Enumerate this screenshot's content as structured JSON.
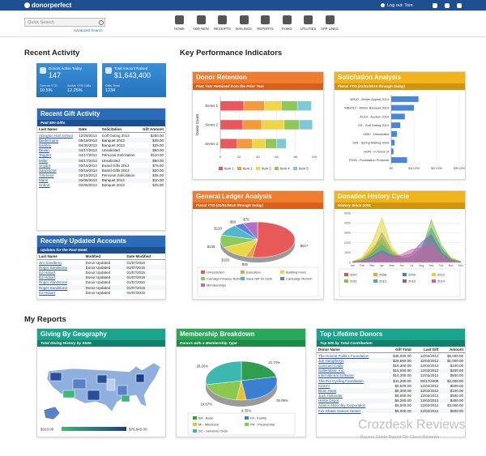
{
  "header": {
    "logo": "donorperfect",
    "logout": "Log out: Tom",
    "search_placeholder": "Quick Search",
    "advanced_search": "Advanced Search",
    "nav": [
      "HOME",
      "ADD NEW",
      "RECEIPTS",
      "MAILINGS",
      "REPORTS",
      "TASKS",
      "UTILITIES",
      "APP LINKS"
    ]
  },
  "recent_activity": {
    "title": "Recent Activity",
    "tiles": [
      {
        "label": "Donors Active Today",
        "value": "147",
        "subs": [
          {
            "label": "Donors YTD",
            "value": "10.5%"
          },
          {
            "label": "Active YTD Gifts",
            "value": "12.25%"
          }
        ]
      },
      {
        "label": "Total Amount Raised",
        "value": "$1,643,400",
        "subs": [
          {
            "label": "Gifts Total",
            "value": "1234"
          }
        ]
      }
    ]
  },
  "recent_gifts": {
    "title": "Recent Gift Activity",
    "subtitle": "Past 500 Gifts",
    "columns": [
      "Last Name",
      "Date",
      "Solicitation",
      "Gift Amount"
    ],
    "rows": [
      [
        "Abington Hall School",
        "12/29/2013",
        "Golf Outing 2013",
        "$250.00"
      ],
      [
        "Biedermann",
        "05/18/2013",
        "Banquet 2013",
        "$25.00"
      ],
      [
        "Barkley",
        "04/30/2013",
        "Banquet 2013",
        "$25.00"
      ],
      [
        "Bevan",
        "04/17/2013",
        "Unsolicited",
        "$50.00"
      ],
      [
        "Taggert",
        "04/17/2013",
        "Personal Solicitation",
        "$110.00"
      ],
      [
        "Miller",
        "04/17/2013",
        "Unsolicited",
        "$50.00"
      ],
      [
        "Snyder",
        "03/15/2013",
        "Board Gifts 2013",
        "$75.00"
      ],
      [
        "Sandstone",
        "03/15/2013",
        "Board Gifts 2013",
        "$20.00"
      ],
      [
        "Timmene",
        "02/15/2013",
        "Personal Solicitation",
        "$35.00"
      ],
      [
        "Mann",
        "02/05/2013",
        "Banquet 2013",
        "$10.00"
      ],
      [
        "Hobart",
        "02/05/2013",
        "Banquet 2013",
        "$25.00"
      ]
    ]
  },
  "recent_accounts": {
    "title": "Recently Updated Accounts",
    "subtitle": "Updates for the Past Week",
    "columns": [
      "Last Name",
      "Modified",
      "Date Modified"
    ],
    "rows": [
      [
        "Jim Sandberg",
        "Donor Updated",
        "01/07/2015"
      ],
      [
        "Roger Sandstone",
        "Donor Updated",
        "01/07/2015"
      ],
      [
        "Ed Hobart",
        "Donor Updated",
        "01/07/2015"
      ],
      [
        "Ed Hobart",
        "Donor Updated",
        "01/07/2015"
      ],
      [
        "Roger Sandstone",
        "Donor Updated",
        "01/07/2015"
      ],
      [
        "Roger Sandstone",
        "Donor Updated",
        "01/07/2015"
      ],
      [
        "Ed Hobart",
        "Donor Updated",
        "01/07/2015"
      ]
    ]
  },
  "kpi": {
    "title": "Key Performance Indicators",
    "donor_retention": {
      "type": "bar",
      "title": "Donor Retention",
      "subtitle": "Past Year Retained from the Prior Year",
      "y_label": "Donor Count",
      "categories": [
        "Series 1",
        "Series 2",
        "Series 3"
      ],
      "series": [
        {
          "name": "Item 1",
          "color": "#e8585c",
          "values": [
            25,
            24,
            18
          ]
        },
        {
          "name": "Item 2",
          "color": "#f29a3c",
          "values": [
            22,
            20,
            16
          ]
        },
        {
          "name": "Item 3",
          "color": "#efd54a",
          "values": [
            18,
            24,
            14
          ]
        },
        {
          "name": "Item 4",
          "color": "#8fc75a",
          "values": [
            17,
            16,
            12
          ]
        },
        {
          "name": "Item 5",
          "color": "#7fc8d8",
          "values": [
            15,
            14,
            10
          ]
        }
      ],
      "xlim": [
        0,
        100
      ],
      "xticks": [
        0,
        20,
        40,
        60,
        80,
        100
      ]
    },
    "solicitation": {
      "type": "bar",
      "title": "Solicitation Analysis",
      "subtitle": "Fiscal YTD (01/01/2015 through today)",
      "categories": [
        "W910 - Winter Appeal 2014",
        "WB2012 - Winter Banquet 2014",
        "AU10 - Auction 2014",
        "G9 - Golf Outing 2014",
        "U950 - Unsolicited",
        "S09 - Spring Mailing 2009",
        "HON - In honor of",
        "FO26 - Foundation Proposal"
      ],
      "values": [
        12000,
        10000,
        6000,
        4000,
        2500,
        1500,
        1000,
        7000
      ],
      "color": "#4a86d8",
      "xlim": [
        0,
        30000
      ],
      "xticks": [
        {
          "value": 0,
          "label": "$0"
        },
        {
          "value": 10000,
          "label": "$10,000"
        },
        {
          "value": 20000,
          "label": "$20,000"
        },
        {
          "value": 30000,
          "label": "$30,000"
        }
      ]
    },
    "general_ledger": {
      "type": "pie",
      "title": "General Ledger Analysis",
      "subtitle": "Fiscal YTD (01/01/2015 through today)",
      "categories": [
        "Unrestricted",
        "Education",
        "Building Fund",
        "Camaign Finance Reform",
        "Save Gift for Debt",
        "Campaign Reform",
        "Memberships"
      ],
      "values": [
        617,
        35,
        150,
        135,
        120,
        50,
        75
      ],
      "value_labels": [
        "$617",
        "$35",
        "$150",
        "$135",
        "$120",
        "$50",
        "$75"
      ],
      "colors": [
        "#e85a5a",
        "#f0a040",
        "#e8d848",
        "#8fc860",
        "#50b8c8",
        "#5a80d8",
        "#b070c8"
      ]
    },
    "donation_history": {
      "type": "area",
      "title": "Donation History Cycle",
      "subtitle": "History Since 2001",
      "categories": [
        "Jan",
        "Feb",
        "Mar",
        "Apr",
        "May",
        "Jun",
        "Jul",
        "Aug",
        "Sep",
        "Oct",
        "Nov",
        "Dec"
      ],
      "series": [
        {
          "name": "2007",
          "color": "#e05050",
          "values": [
            100,
            300,
            800,
            1200,
            600,
            200,
            100,
            300,
            900,
            500,
            200,
            100
          ]
        },
        {
          "name": "2008",
          "color": "#f0a030",
          "values": [
            50,
            400,
            1500,
            2200,
            900,
            300,
            200,
            500,
            1800,
            900,
            300,
            50
          ]
        },
        {
          "name": "2009",
          "color": "#4080d0",
          "values": [
            80,
            200,
            1000,
            3000,
            1200,
            400,
            300,
            800,
            2600,
            1200,
            400,
            80
          ]
        },
        {
          "name": "2010",
          "color": "#e8d030",
          "values": [
            100,
            500,
            2000,
            4500,
            1500,
            500,
            300,
            900,
            3200,
            1400,
            500,
            100
          ]
        },
        {
          "name": "2011",
          "color": "#90c040",
          "values": [
            60,
            300,
            1200,
            2500,
            1000,
            400,
            500,
            1200,
            4300,
            1800,
            400,
            60
          ]
        },
        {
          "name": "2012",
          "color": "#40b0a0",
          "values": [
            40,
            200,
            900,
            1800,
            800,
            300,
            600,
            1500,
            3500,
            1500,
            300,
            40
          ]
        },
        {
          "name": "2013",
          "color": "#8060c0",
          "values": [
            30,
            150,
            600,
            1200,
            700,
            600,
            900,
            2000,
            2800,
            1000,
            200,
            30
          ]
        },
        {
          "name": "2014",
          "color": "#d060a0",
          "values": [
            20,
            100,
            400,
            900,
            500,
            800,
            1300,
            1500,
            1800,
            700,
            150,
            20
          ]
        }
      ],
      "ylim": [
        0,
        5000
      ],
      "yticks": [
        0,
        1000,
        2000,
        3000,
        4000,
        5000
      ]
    }
  },
  "my_reports": {
    "title": "My Reports",
    "geography": {
      "title": "Giving By Geography",
      "subtitle": "Total Giving History by State",
      "legend_min": "$310.00",
      "legend_max": "$76,645.00"
    },
    "membership": {
      "type": "pie",
      "title": "Membership Breakdown",
      "subtitle": "Donors with a Membership Type",
      "categories": [
        "BA - Basic",
        "FA - Family",
        "MI - Milestone",
        "PR - Presidential",
        "SC - Senators Circle"
      ],
      "values": [
        21.74,
        26.09,
        4.35,
        19.57,
        28.26
      ],
      "value_labels": [
        "21.74%",
        "26.09%",
        "4.35%",
        "19.57%",
        "28.26%"
      ],
      "colors": [
        "#2e9e4e",
        "#3a7fd0",
        "#e8c030",
        "#8cc850",
        "#3cb8b0"
      ]
    },
    "top_donors": {
      "title": "Top Lifetime Donors",
      "subtitle": "Top 500 by Total Contribution",
      "columns": [
        "Donor Name",
        "Gift Total",
        "Last Gift",
        "Amount"
      ],
      "rows": [
        [
          "The Honest Politics Foundation",
          "$35,000.00",
          "12/02/2012",
          "$5,000.00"
        ],
        [
          "Jon Humphreys",
          "$28,860.00",
          "12/02/2012",
          "$1,000.00"
        ],
        [
          "Comcast Cable",
          "$18,300.00",
          "12/02/2012",
          "$100.00"
        ],
        [
          "SofterWare, Inc.",
          "$15,000.00",
          "12/02/2012",
          "$200.00"
        ],
        [
          "International Software",
          "$14,300.00",
          "12/02/2012",
          "$500.00"
        ],
        [
          "The Pro Cycling Foundation",
          "$11,200.00",
          "08/17/2009",
          "$2,000.00"
        ],
        [
          "Kinko's",
          "$9,500.00",
          "12/02/2012",
          "$500.00"
        ],
        [
          "Brian Hans",
          "$8,300.00",
          "12/02/2012",
          "$100.00"
        ],
        [
          "Jack Hollander",
          "$8,000.00",
          "12/02/2012",
          "$500.00"
        ],
        [
          "Home Depot",
          "$6,260.00",
          "12/02/2012",
          "$400.00"
        ],
        [
          "Adams McKinley Corporation",
          "$6,000.00",
          "12/02/2012",
          "$3,000.00"
        ],
        [
          "Fox Chase Cancer Center",
          "$5,000.00",
          "12/02/2012",
          "$500.00"
        ]
      ]
    }
  },
  "watermark": {
    "title": "Crozdesk Reviews",
    "subtitle": "Buyers Guide Based On Client Reviews"
  }
}
